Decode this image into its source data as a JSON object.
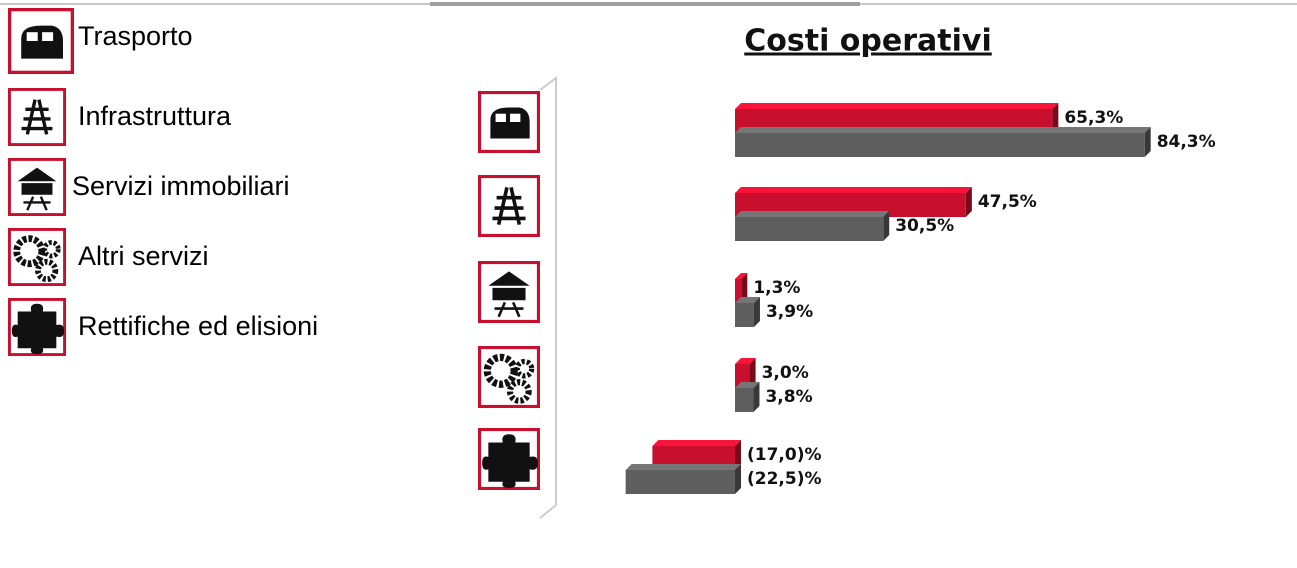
{
  "chart_data": {
    "type": "bar",
    "orientation": "horizontal",
    "title": "Costi operativi",
    "categories": [
      "Trasporto",
      "Infrastruttura",
      "Servizi immobiliari",
      "Altri servizi",
      "Rettifiche ed elisioni"
    ],
    "series": [
      {
        "color": "#c8102e",
        "values": [
          65.3,
          47.5,
          1.3,
          3.0,
          -17.0
        ],
        "value_labels": [
          "65,3%",
          "47,5%",
          "1,3%",
          "3,0%",
          "(17,0)%"
        ]
      },
      {
        "color": "#5e5e5e",
        "values": [
          84.3,
          30.5,
          3.9,
          3.8,
          -22.5
        ],
        "value_labels": [
          "84,3%",
          "30,5%",
          "3,9%",
          "3,8%",
          "(22,5)%"
        ]
      }
    ]
  }
}
